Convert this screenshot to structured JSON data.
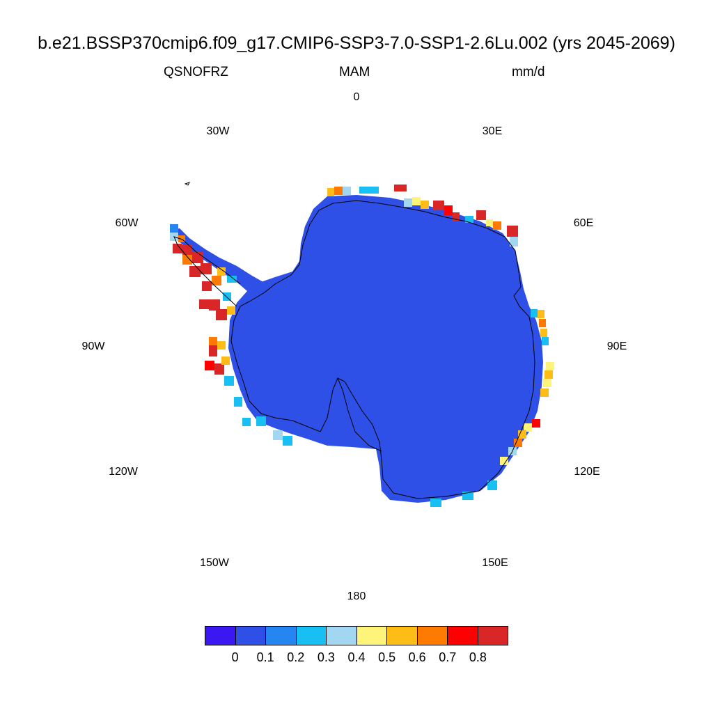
{
  "title": "b.e21.BSSP370cmip6.f09_g17.CMIP6-SSP3-7.0-SSP1-2.6Lu.002 (yrs 2045-2069)",
  "subtitle": {
    "left": "QSNOFRZ",
    "center": "MAM",
    "right": "mm/d"
  },
  "longitude_labels": {
    "lon0": "0",
    "lon30e": "30E",
    "lon60e": "60E",
    "lon90e": "90E",
    "lon120e": "120E",
    "lon150e": "150E",
    "lon180": "180",
    "lon150w": "150W",
    "lon120w": "120W",
    "lon90w": "90W",
    "lon60w": "60W",
    "lon30w": "30W"
  },
  "colorbar": {
    "colors": [
      "#3b18f2",
      "#2e50e6",
      "#2586f2",
      "#17bff2",
      "#a3d6f0",
      "#fff47a",
      "#fdbd16",
      "#ff7a00",
      "#ff0000",
      "#d92727"
    ],
    "labels": [
      "0",
      "0.1",
      "0.2",
      "0.3",
      "0.4",
      "0.5",
      "0.6",
      "0.7",
      "0.8"
    ]
  },
  "map": {
    "projection": "south-polar-stereographic",
    "region": "Antarctica",
    "interior_color": "#2e50e6",
    "coastline_color": "#000000"
  }
}
